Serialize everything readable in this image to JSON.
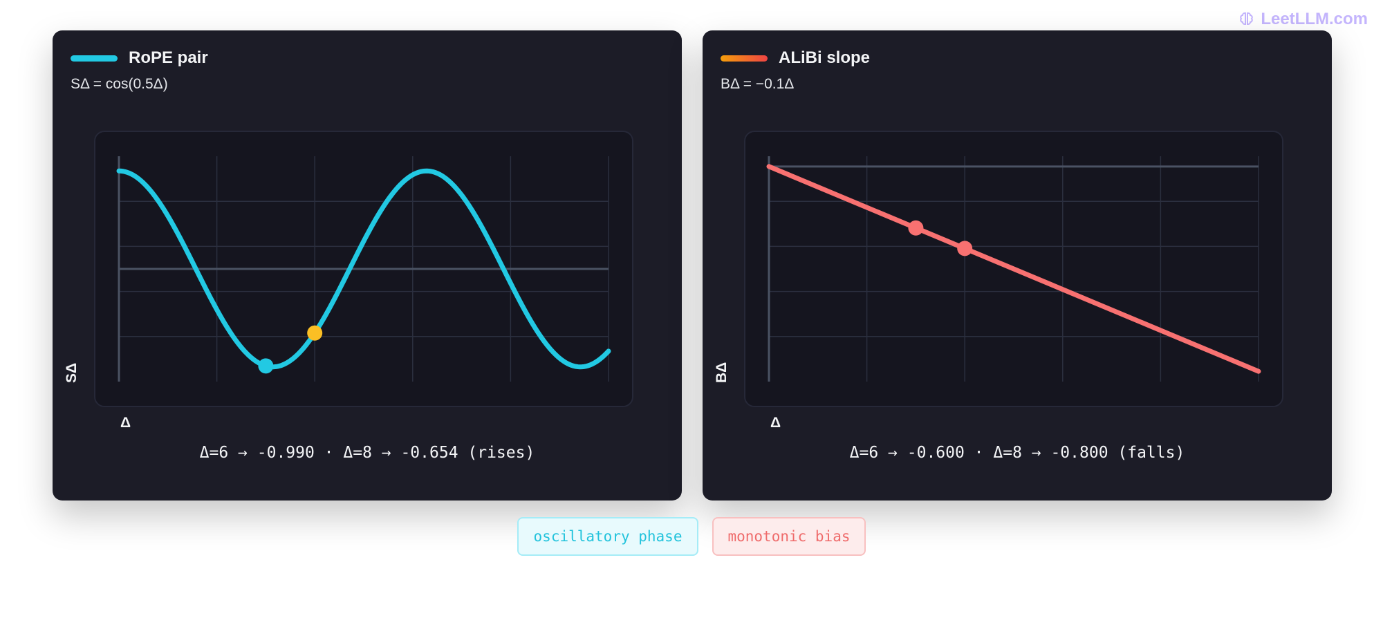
{
  "watermark": {
    "text": "LeetLLM.com",
    "icon": "brain-icon"
  },
  "colors": {
    "rope_line": "#22c9e3",
    "rope_highlight": "#fbbf24",
    "alibi_line": "#f87171",
    "alibi_swatch_start": "#f59e0b",
    "alibi_swatch_end": "#ef4444",
    "card_bg": "#1c1c27"
  },
  "chart_data": [
    {
      "type": "line",
      "legend": "RoPE pair",
      "formula": "SΔ = cos(0.5Δ)",
      "xlabel": "Δ",
      "ylabel": "SΔ",
      "function": "cos(0.5*x)",
      "xlim": [
        0,
        20
      ],
      "ylim": [
        -1.15,
        1.15
      ],
      "grid": true,
      "x": [
        0,
        1,
        2,
        3,
        4,
        5,
        6,
        7,
        8,
        9,
        10,
        11,
        12,
        13,
        14,
        15,
        16,
        17,
        18,
        19,
        20
      ],
      "y": [
        1.0,
        0.878,
        0.54,
        0.071,
        -0.416,
        -0.801,
        -0.99,
        -0.936,
        -0.654,
        -0.211,
        0.284,
        0.709,
        0.96,
        0.977,
        0.754,
        0.347,
        -0.146,
        -0.602,
        -0.911,
        -0.997,
        -0.839
      ],
      "highlights": [
        {
          "x": 6,
          "y": -0.99,
          "role": "primary"
        },
        {
          "x": 8,
          "y": -0.654,
          "role": "secondary"
        }
      ],
      "readout": "Δ=6 → -0.990 · Δ=8 → -0.654 (rises)"
    },
    {
      "type": "line",
      "legend": "ALiBi slope",
      "formula": "BΔ = −0.1Δ",
      "xlabel": "Δ",
      "ylabel": "BΔ",
      "function": "-0.1*x",
      "xlim": [
        0,
        20
      ],
      "ylim": [
        -2.1,
        0.1
      ],
      "grid": true,
      "x": [
        0,
        20
      ],
      "y": [
        0,
        -2.0
      ],
      "highlights": [
        {
          "x": 6,
          "y": -0.6,
          "role": "primary"
        },
        {
          "x": 8,
          "y": -0.8,
          "role": "secondary"
        }
      ],
      "readout": "Δ=6 → -0.600 · Δ=8 → -0.800 (falls)"
    }
  ],
  "tags": [
    {
      "label": "oscillatory phase"
    },
    {
      "label": "monotonic bias"
    }
  ]
}
